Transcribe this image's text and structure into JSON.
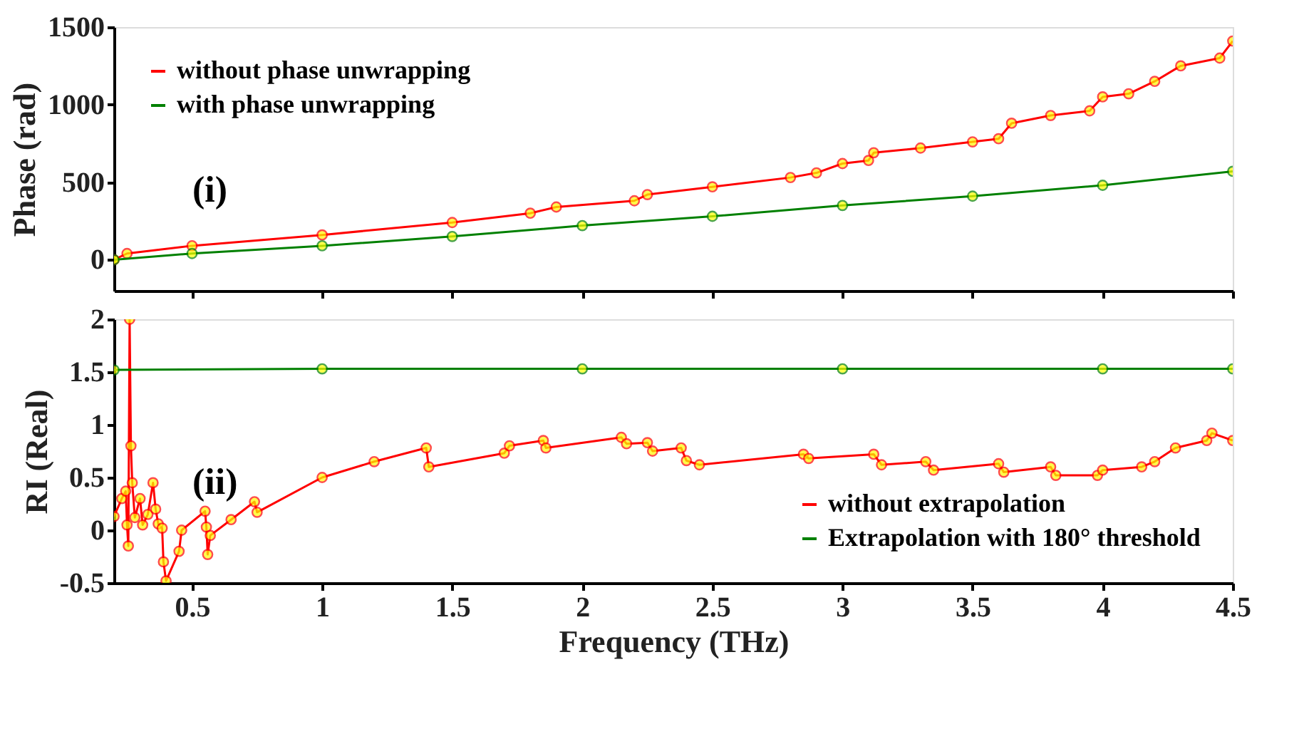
{
  "chart_data": [
    {
      "type": "line",
      "ylabel": "Phase (rad)",
      "xlim": [
        0.2,
        4.5
      ],
      "xticks": [
        0.5,
        1,
        1.5,
        2,
        2.5,
        3,
        3.5,
        4,
        4.5
      ],
      "ylim": [
        -200,
        1500
      ],
      "yticks": [
        0,
        500,
        1000,
        1500
      ],
      "tick_labels": "y",
      "legend": "top left",
      "marker": "circle",
      "grid": false,
      "annotations": [
        "(i)"
      ],
      "series": [
        {
          "name": "without phase unwrapping",
          "color": "#ff0000",
          "x": [
            0.2,
            0.25,
            0.5,
            1,
            1.5,
            1.8,
            1.9,
            2.2,
            2.25,
            2.5,
            2.8,
            2.9,
            3.0,
            3.1,
            3.12,
            3.3,
            3.5,
            3.6,
            3.65,
            3.8,
            3.95,
            4.0,
            4.1,
            4.2,
            4.3,
            4.45,
            4.5
          ],
          "values": [
            0,
            40,
            90,
            160,
            240,
            300,
            340,
            380,
            420,
            470,
            530,
            560,
            620,
            640,
            690,
            720,
            760,
            780,
            880,
            930,
            960,
            1050,
            1070,
            1150,
            1250,
            1300,
            1410
          ]
        },
        {
          "name": "with phase unwrapping",
          "color": "#008000",
          "x": [
            0.2,
            0.5,
            1,
            1.5,
            2,
            2.5,
            3,
            3.5,
            4,
            4.5
          ],
          "values": [
            0,
            40,
            90,
            150,
            220,
            280,
            350,
            410,
            480,
            570
          ]
        }
      ]
    },
    {
      "type": "line",
      "xlabel": "Frequency (THz)",
      "ylabel": "RI (Real)",
      "xlim": [
        0.2,
        4.5
      ],
      "xticks": [
        0.5,
        1,
        1.5,
        2,
        2.5,
        3,
        3.5,
        4,
        4.5
      ],
      "ylim": [
        -0.5,
        2
      ],
      "yticks": [
        -0.5,
        0,
        0.5,
        1,
        1.5,
        2
      ],
      "legend": "bottom right",
      "marker": "circle",
      "grid": false,
      "annotations": [
        "(ii)"
      ],
      "series": [
        {
          "name": "without extrapolation",
          "color": "#ff0000",
          "x": [
            0.2,
            0.23,
            0.245,
            0.25,
            0.255,
            0.26,
            0.265,
            0.27,
            0.28,
            0.3,
            0.31,
            0.33,
            0.35,
            0.36,
            0.37,
            0.385,
            0.39,
            0.4,
            0.45,
            0.46,
            0.55,
            0.555,
            0.56,
            0.57,
            0.65,
            0.74,
            0.75,
            1.0,
            1.2,
            1.4,
            1.41,
            1.7,
            1.72,
            1.85,
            1.86,
            2.15,
            2.17,
            2.25,
            2.27,
            2.38,
            2.4,
            2.45,
            2.85,
            2.87,
            3.12,
            3.15,
            3.32,
            3.35,
            3.6,
            3.62,
            3.8,
            3.82,
            3.98,
            4.0,
            4.15,
            4.2,
            4.28,
            4.4,
            4.42,
            4.5
          ],
          "values": [
            0.13,
            0.3,
            0.37,
            0.05,
            -0.15,
            2.0,
            0.8,
            0.45,
            0.12,
            0.3,
            0.05,
            0.15,
            0.45,
            0.2,
            0.06,
            0.02,
            -0.3,
            -0.48,
            -0.2,
            0.0,
            0.18,
            0.03,
            -0.23,
            -0.05,
            0.1,
            0.27,
            0.17,
            0.5,
            0.65,
            0.78,
            0.6,
            0.73,
            0.8,
            0.85,
            0.78,
            0.88,
            0.82,
            0.83,
            0.75,
            0.78,
            0.66,
            0.62,
            0.72,
            0.68,
            0.72,
            0.62,
            0.65,
            0.57,
            0.63,
            0.55,
            0.6,
            0.52,
            0.52,
            0.57,
            0.6,
            0.65,
            0.78,
            0.85,
            0.92,
            0.85
          ]
        },
        {
          "name": "Extrapolation with 180° threshold",
          "color": "#008000",
          "x": [
            0.2,
            1,
            2,
            3,
            4,
            4.5
          ],
          "values": [
            1.52,
            1.53,
            1.53,
            1.53,
            1.53,
            1.53
          ]
        }
      ]
    }
  ]
}
